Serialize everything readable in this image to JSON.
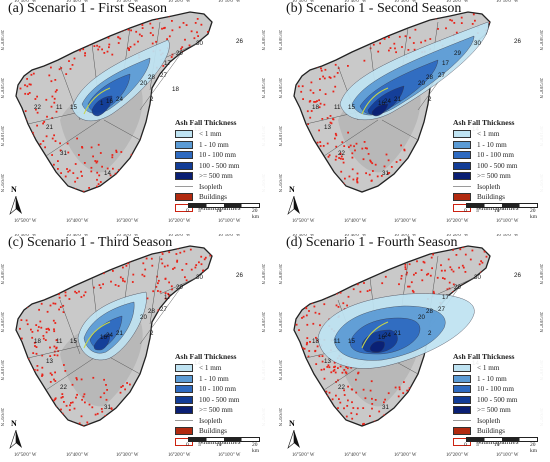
{
  "panels": [
    {
      "title": "(a) Scenario 1 - First Season",
      "plume": "first"
    },
    {
      "title": "(b) Scenario 1 - Second Season",
      "plume": "second"
    },
    {
      "title": "(c) Scenario 1 - Third Season",
      "plume": "third"
    },
    {
      "title": "(d) Scenario 1 - Fourth Season",
      "plume": "fourth"
    }
  ],
  "legend": {
    "title": "Ash Fall Thickness",
    "classes": [
      "< 1 mm",
      "1 - 10 mm",
      "10 - 100 mm",
      "100 - 500 mm",
      ">= 500 mm"
    ],
    "class_colors": [
      "#bfe3f2",
      "#5b9bd5",
      "#2e6ac0",
      "#123c96",
      "#0a1f73"
    ],
    "isopleth": "Isopleth",
    "buildings": "Buildings",
    "buildings_color": "#e8231a",
    "municipalities": "Municipalities"
  },
  "scale": {
    "labels": [
      "0",
      "5",
      "10",
      "20 km"
    ]
  },
  "north": "N",
  "lon_labels_top": [
    "16°50'0\" W",
    "16°40'0\" W",
    "16°30'0\" W",
    "16°20'0\" W",
    "16°10'0\" W"
  ],
  "lon_labels_bottom": [
    "16°50'0\" W",
    "16°40'0\" W",
    "16°30'0\" W",
    "16°20'0\" W",
    "16°10'0\" W"
  ],
  "lat_labels_left": [
    "28°30'0\" N",
    "28°20'0\" N",
    "28°10'0\" N",
    "28°0'0\" N"
  ],
  "lat_labels_right": [
    "28°30'0\" N",
    "28°20'0\" N",
    "28°10'0\" N",
    "28°0'0\" N"
  ],
  "municipality_numbers": {
    "first": [
      "30",
      "26",
      "29",
      "17",
      "27",
      "28",
      "20",
      "2",
      "11",
      "15",
      "1",
      "16",
      "24",
      "21",
      "13",
      "14",
      "31",
      "22",
      "18"
    ],
    "second": [
      "30",
      "26",
      "29",
      "17",
      "27",
      "28",
      "20",
      "2",
      "11",
      "15",
      "16",
      "24",
      "21",
      "13",
      "14",
      "31",
      "22",
      "18"
    ],
    "third": [
      "30",
      "26",
      "29",
      "17",
      "27",
      "28",
      "20",
      "2",
      "11",
      "15",
      "16",
      "24",
      "21",
      "13",
      "14",
      "31",
      "22",
      "18"
    ],
    "fourth": [
      "30",
      "26",
      "29",
      "17",
      "27",
      "28",
      "20",
      "2",
      "11",
      "15",
      "16",
      "24",
      "21",
      "13",
      "14",
      "31",
      "22",
      "18"
    ]
  }
}
